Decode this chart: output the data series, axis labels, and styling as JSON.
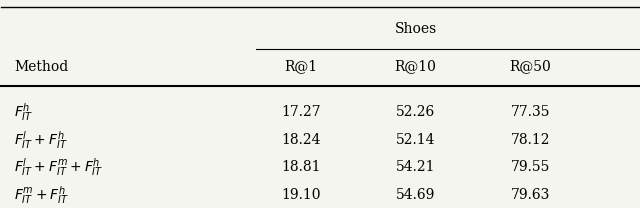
{
  "title": "Shoes",
  "col_headers": [
    "R@1",
    "R@10",
    "R@50"
  ],
  "row_labels": [
    "$F_{IT}^{h}$",
    "$F_{IT}^{l} + F_{IT}^{h}$",
    "$F_{IT}^{l} + F_{IT}^{m} + F_{IT}^{h}$",
    "$F_{IT}^{m} + F_{IT}^{h}$"
  ],
  "data": [
    [
      17.27,
      52.26,
      77.35
    ],
    [
      18.24,
      52.14,
      78.12
    ],
    [
      18.81,
      54.21,
      79.55
    ],
    [
      19.1,
      54.69,
      79.63
    ]
  ],
  "method_label": "Method",
  "figsize": [
    6.4,
    2.08
  ],
  "dpi": 100,
  "font_size": 10,
  "bg_color": "#f5f5f0"
}
